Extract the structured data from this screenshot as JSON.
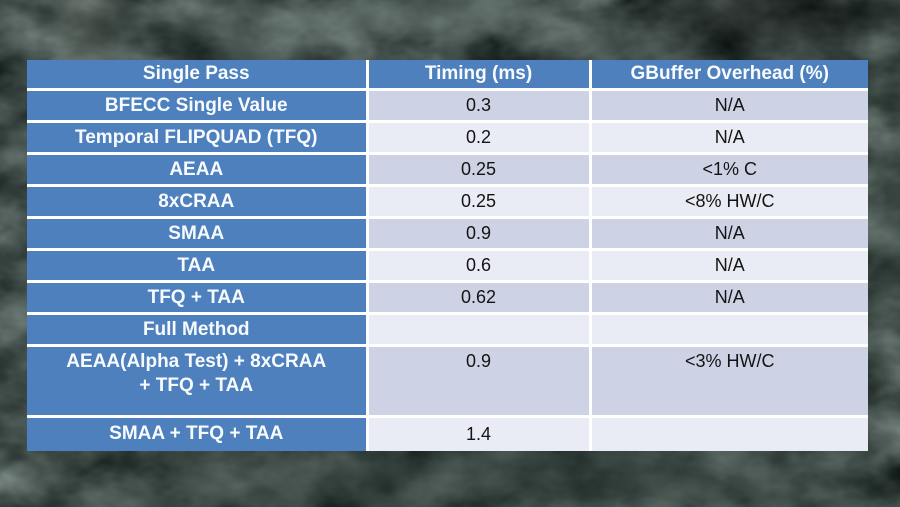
{
  "slide": {
    "background_color": "#101a17",
    "texture": "dark teal-green grunge"
  },
  "colors": {
    "table_blue": "#4d80bd",
    "row_band_dark": "#cdd3e4",
    "row_band_light": "#e9ecf4",
    "grid_line": "#ffffff",
    "header_text": "#f8fbfe",
    "data_text": "#141414"
  },
  "chart_data": {
    "type": "table",
    "columns": [
      "Single Pass",
      "Timing (ms)",
      "GBuffer Overhead (%)"
    ],
    "rows": [
      {
        "name": "BFECC Single Value",
        "timing": "0.3",
        "overhead": "N/A"
      },
      {
        "name": "Temporal FLIPQUAD (TFQ)",
        "timing": "0.2",
        "overhead": "N/A"
      },
      {
        "name": "AEAA",
        "timing": "0.25",
        "overhead": "<1% C"
      },
      {
        "name": "8xCRAA",
        "timing": "0.25",
        "overhead": "<8% HW/C"
      },
      {
        "name": "SMAA",
        "timing": "0.9",
        "overhead": "N/A"
      },
      {
        "name": "TAA",
        "timing": "0.6",
        "overhead": "N/A"
      },
      {
        "name": "TFQ + TAA",
        "timing": "0.62",
        "overhead": "N/A"
      },
      {
        "name": "Full Method",
        "timing": "",
        "overhead": ""
      },
      {
        "name": "AEAA(Alpha Test) + 8xCRAA\n+ TFQ + TAA",
        "timing": "0.9",
        "overhead": "<3% HW/C"
      },
      {
        "name": "SMAA + TFQ + TAA",
        "timing": "1.4",
        "overhead": ""
      }
    ]
  }
}
